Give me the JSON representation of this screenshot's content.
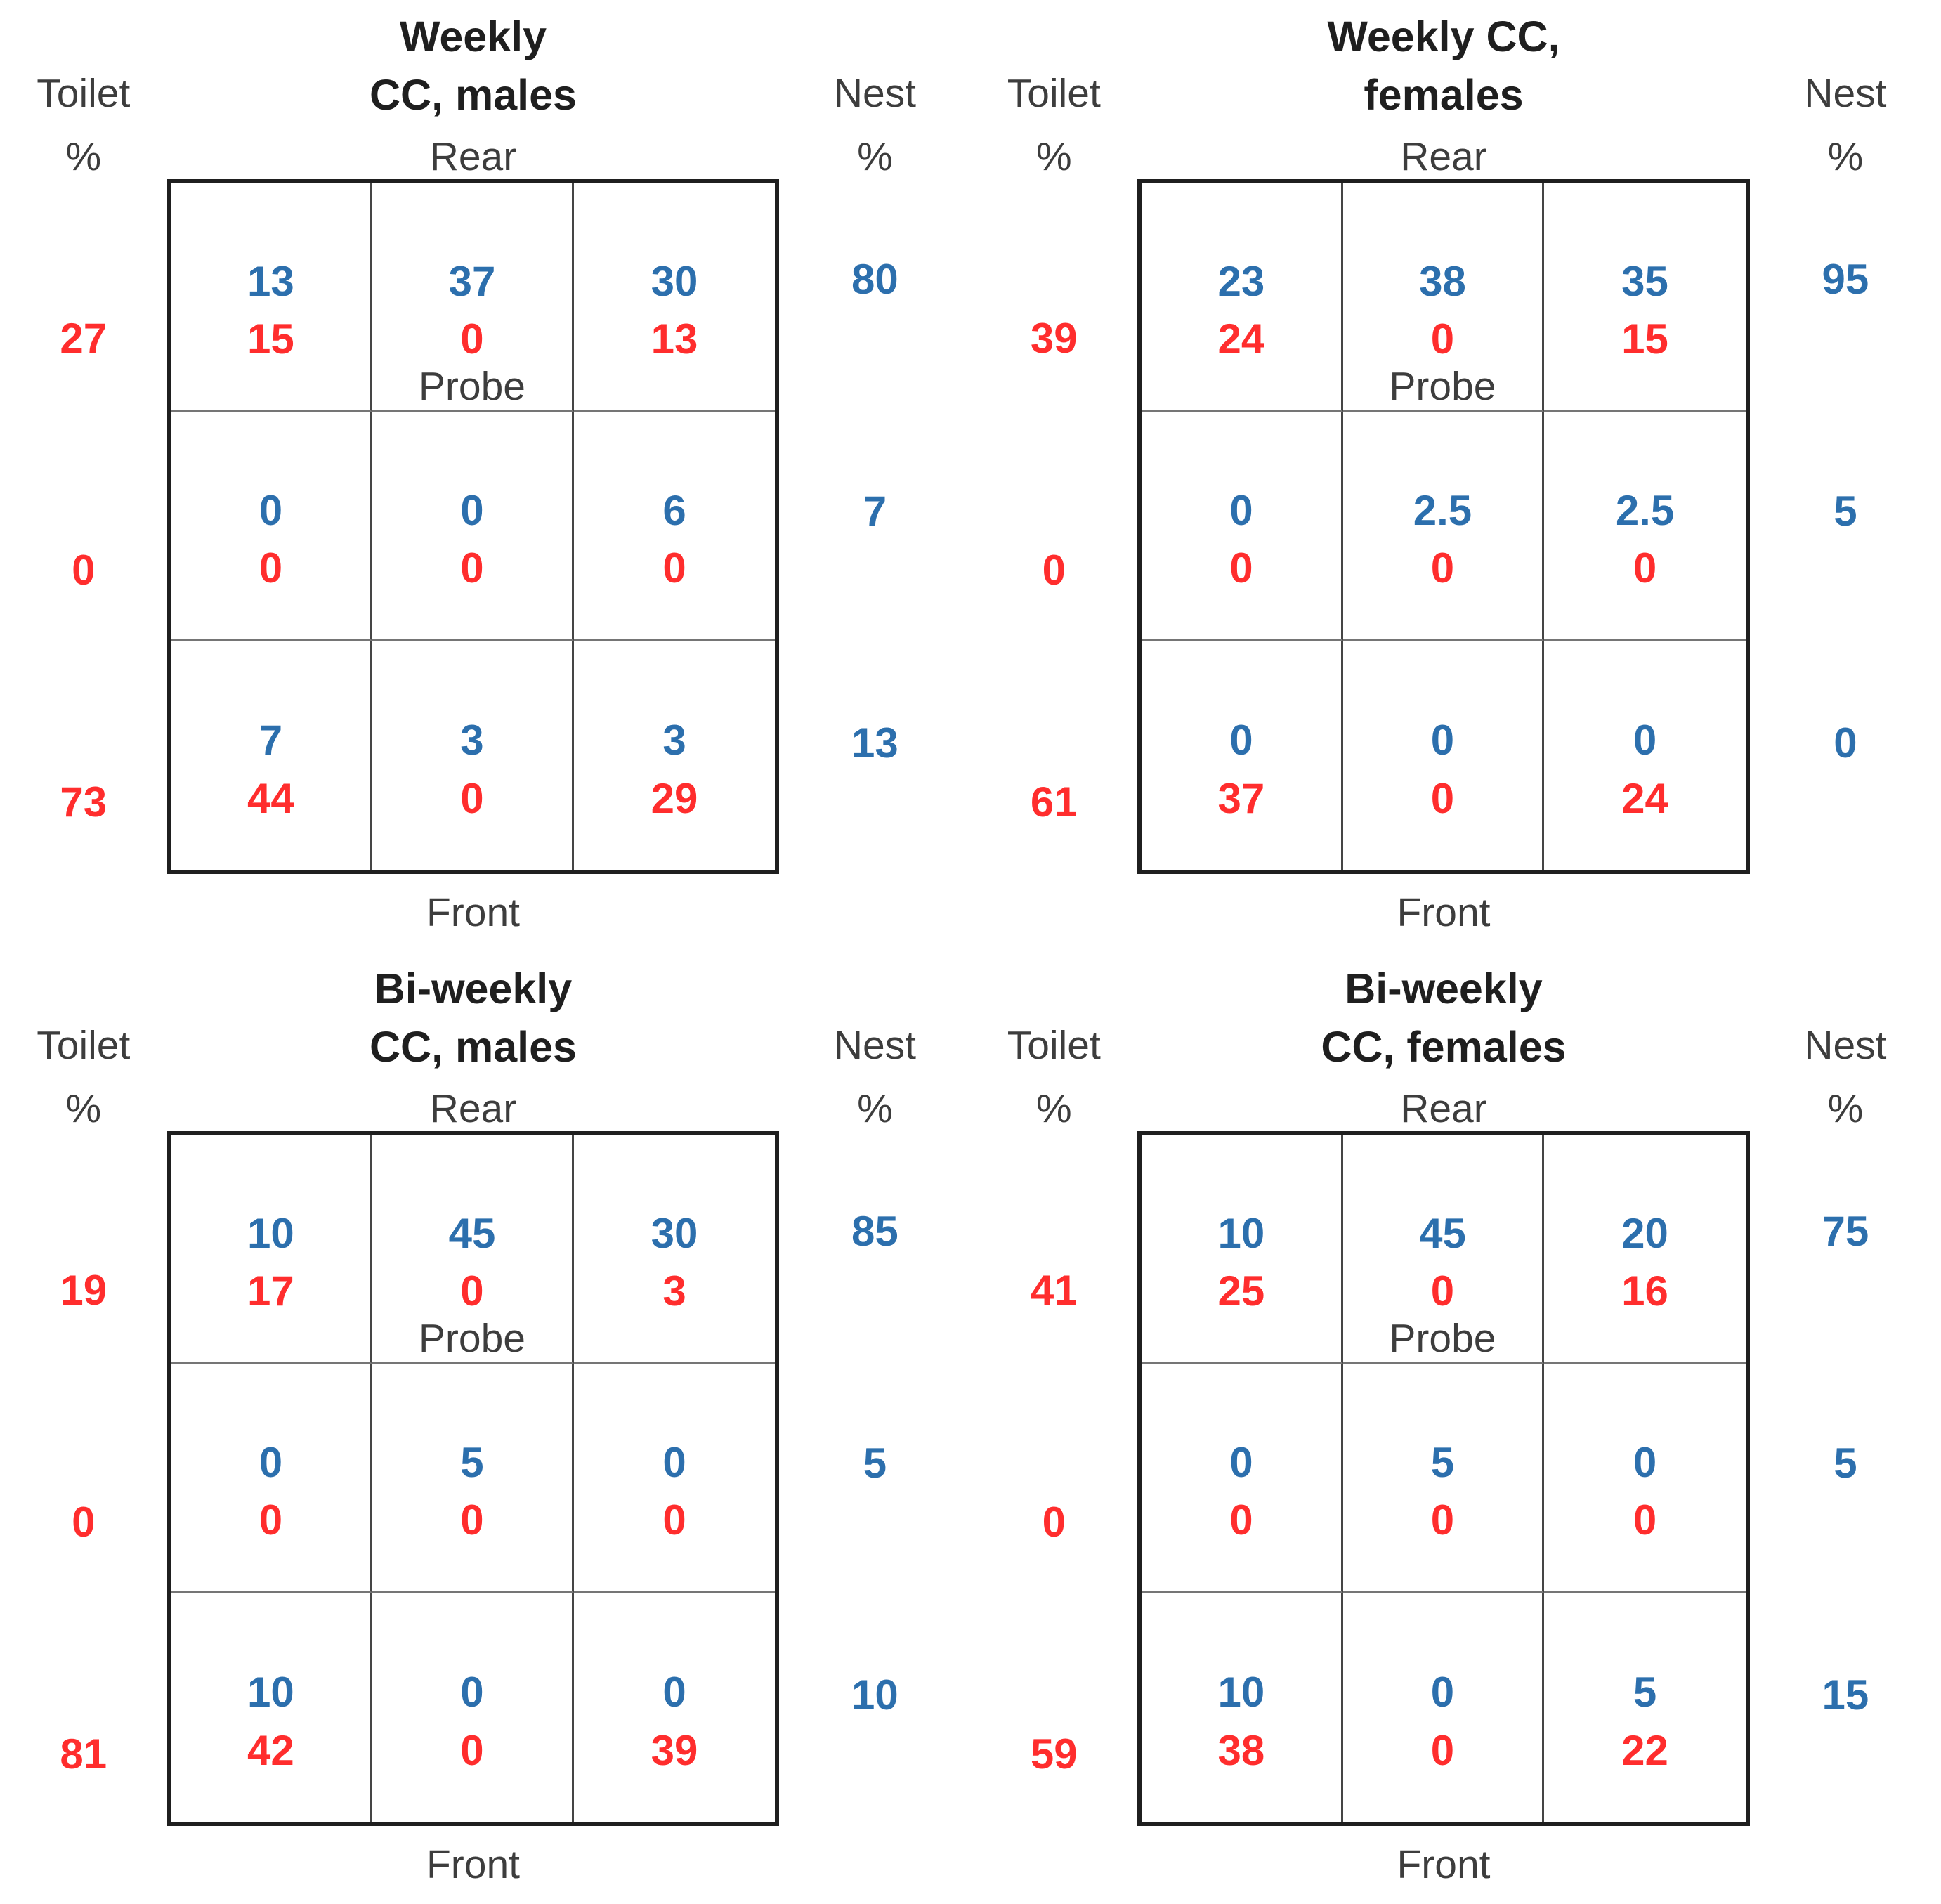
{
  "colors": {
    "nest_blue": "#2c6fad",
    "toilet_red": "#ff2d2d",
    "label_gray": "#3d3d3d",
    "title_black": "#1f1f1f",
    "grid_border": "#1f1f1f"
  },
  "legend": {
    "blue_numbers_mean": "Nest %",
    "red_numbers_mean": "Toilet %"
  },
  "panels": [
    {
      "name": "weekly-cc-males",
      "title_line1": "Weekly",
      "title_line2": "CC, males",
      "left_label_line1": "Toilet",
      "left_label_line2": "%",
      "right_label_line1": "Nest",
      "right_label_line2": "%",
      "top_edge_label": "Rear",
      "bottom_edge_label": "Front",
      "probe_label": "Probe",
      "rows": [
        {
          "left_total": "27",
          "right_total": "80",
          "cells": [
            {
              "nest": "13",
              "toilet": "15"
            },
            {
              "nest": "37",
              "toilet": "0"
            },
            {
              "nest": "30",
              "toilet": "13"
            }
          ]
        },
        {
          "left_total": "0",
          "right_total": "7",
          "cells": [
            {
              "nest": "0",
              "toilet": "0"
            },
            {
              "nest": "0",
              "toilet": "0"
            },
            {
              "nest": "6",
              "toilet": "0"
            }
          ]
        },
        {
          "left_total": "73",
          "right_total": "13",
          "cells": [
            {
              "nest": "7",
              "toilet": "44"
            },
            {
              "nest": "3",
              "toilet": "0"
            },
            {
              "nest": "3",
              "toilet": "29"
            }
          ]
        }
      ]
    },
    {
      "name": "weekly-cc-females",
      "title_line1": "Weekly CC,",
      "title_line2": "females",
      "left_label_line1": "Toilet",
      "left_label_line2": "%",
      "right_label_line1": "Nest",
      "right_label_line2": "%",
      "top_edge_label": "Rear",
      "bottom_edge_label": "Front",
      "probe_label": "Probe",
      "rows": [
        {
          "left_total": "39",
          "right_total": "95",
          "cells": [
            {
              "nest": "23",
              "toilet": "24"
            },
            {
              "nest": "38",
              "toilet": "0"
            },
            {
              "nest": "35",
              "toilet": "15"
            }
          ]
        },
        {
          "left_total": "0",
          "right_total": "5",
          "cells": [
            {
              "nest": "0",
              "toilet": "0"
            },
            {
              "nest": "2.5",
              "toilet": "0"
            },
            {
              "nest": "2.5",
              "toilet": "0"
            }
          ]
        },
        {
          "left_total": "61",
          "right_total": "0",
          "cells": [
            {
              "nest": "0",
              "toilet": "37"
            },
            {
              "nest": "0",
              "toilet": "0"
            },
            {
              "nest": "0",
              "toilet": "24"
            }
          ]
        }
      ]
    },
    {
      "name": "biweekly-cc-males",
      "title_line1": "Bi-weekly",
      "title_line2": "CC, males",
      "left_label_line1": "Toilet",
      "left_label_line2": "%",
      "right_label_line1": "Nest",
      "right_label_line2": "%",
      "top_edge_label": "Rear",
      "bottom_edge_label": "Front",
      "probe_label": "Probe",
      "rows": [
        {
          "left_total": "19",
          "right_total": "85",
          "cells": [
            {
              "nest": "10",
              "toilet": "17"
            },
            {
              "nest": "45",
              "toilet": "0"
            },
            {
              "nest": "30",
              "toilet": "3"
            }
          ]
        },
        {
          "left_total": "0",
          "right_total": "5",
          "cells": [
            {
              "nest": "0",
              "toilet": "0"
            },
            {
              "nest": "5",
              "toilet": "0"
            },
            {
              "nest": "0",
              "toilet": "0"
            }
          ]
        },
        {
          "left_total": "81",
          "right_total": "10",
          "cells": [
            {
              "nest": "10",
              "toilet": "42"
            },
            {
              "nest": "0",
              "toilet": "0"
            },
            {
              "nest": "0",
              "toilet": "39"
            }
          ]
        }
      ]
    },
    {
      "name": "biweekly-cc-females",
      "title_line1": "Bi-weekly",
      "title_line2": "CC, females",
      "left_label_line1": "Toilet",
      "left_label_line2": "%",
      "right_label_line1": "Nest",
      "right_label_line2": "%",
      "top_edge_label": "Rear",
      "bottom_edge_label": "Front",
      "probe_label": "Probe",
      "rows": [
        {
          "left_total": "41",
          "right_total": "75",
          "cells": [
            {
              "nest": "10",
              "toilet": "25"
            },
            {
              "nest": "45",
              "toilet": "0"
            },
            {
              "nest": "20",
              "toilet": "16"
            }
          ]
        },
        {
          "left_total": "0",
          "right_total": "5",
          "cells": [
            {
              "nest": "0",
              "toilet": "0"
            },
            {
              "nest": "5",
              "toilet": "0"
            },
            {
              "nest": "0",
              "toilet": "0"
            }
          ]
        },
        {
          "left_total": "59",
          "right_total": "15",
          "cells": [
            {
              "nest": "10",
              "toilet": "38"
            },
            {
              "nest": "0",
              "toilet": "0"
            },
            {
              "nest": "5",
              "toilet": "22"
            }
          ]
        }
      ]
    }
  ],
  "chart_data": [
    {
      "type": "heatmap",
      "title": "Weekly CC, males",
      "orientation": {
        "top": "Rear",
        "bottom": "Front",
        "probe_location": "rear-center cell"
      },
      "series_legend": {
        "blue": "Nest %",
        "red": "Toilet %"
      },
      "nest_pct_cells": [
        [
          13,
          37,
          30
        ],
        [
          0,
          0,
          6
        ],
        [
          7,
          3,
          3
        ]
      ],
      "toilet_pct_cells": [
        [
          15,
          0,
          13
        ],
        [
          0,
          0,
          0
        ],
        [
          44,
          0,
          29
        ]
      ],
      "nest_pct_row_totals": [
        80,
        7,
        13
      ],
      "toilet_pct_row_totals": [
        27,
        0,
        73
      ]
    },
    {
      "type": "heatmap",
      "title": "Weekly CC, females",
      "orientation": {
        "top": "Rear",
        "bottom": "Front",
        "probe_location": "rear-center cell"
      },
      "series_legend": {
        "blue": "Nest %",
        "red": "Toilet %"
      },
      "nest_pct_cells": [
        [
          23,
          38,
          35
        ],
        [
          0,
          2.5,
          2.5
        ],
        [
          0,
          0,
          0
        ]
      ],
      "toilet_pct_cells": [
        [
          24,
          0,
          15
        ],
        [
          0,
          0,
          0
        ],
        [
          37,
          0,
          24
        ]
      ],
      "nest_pct_row_totals": [
        95,
        5,
        0
      ],
      "toilet_pct_row_totals": [
        39,
        0,
        61
      ]
    },
    {
      "type": "heatmap",
      "title": "Bi-weekly CC, males",
      "orientation": {
        "top": "Rear",
        "bottom": "Front",
        "probe_location": "rear-center cell"
      },
      "series_legend": {
        "blue": "Nest %",
        "red": "Toilet %"
      },
      "nest_pct_cells": [
        [
          10,
          45,
          30
        ],
        [
          0,
          5,
          0
        ],
        [
          10,
          0,
          0
        ]
      ],
      "toilet_pct_cells": [
        [
          17,
          0,
          3
        ],
        [
          0,
          0,
          0
        ],
        [
          42,
          0,
          39
        ]
      ],
      "nest_pct_row_totals": [
        85,
        5,
        10
      ],
      "toilet_pct_row_totals": [
        19,
        0,
        81
      ]
    },
    {
      "type": "heatmap",
      "title": "Bi-weekly CC, females",
      "orientation": {
        "top": "Rear",
        "bottom": "Front",
        "probe_location": "rear-center cell"
      },
      "series_legend": {
        "blue": "Nest %",
        "red": "Toilet %"
      },
      "nest_pct_cells": [
        [
          10,
          45,
          20
        ],
        [
          0,
          5,
          0
        ],
        [
          10,
          0,
          5
        ]
      ],
      "toilet_pct_cells": [
        [
          25,
          0,
          16
        ],
        [
          0,
          0,
          0
        ],
        [
          38,
          0,
          22
        ]
      ],
      "nest_pct_row_totals": [
        75,
        5,
        15
      ],
      "toilet_pct_row_totals": [
        41,
        0,
        59
      ]
    }
  ]
}
